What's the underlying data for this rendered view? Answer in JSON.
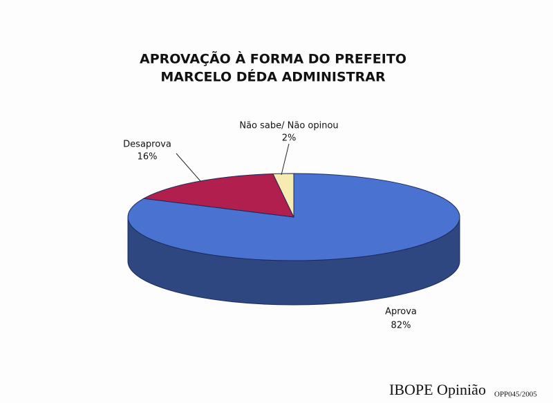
{
  "chart_data": {
    "type": "pie",
    "title": [
      "APROVAÇÃO À FORMA DO PREFEITO",
      "MARCELO DÉDA ADMINISTRAR"
    ],
    "categories": [
      "Aprova",
      "Desaprova",
      "Não sabe/ Não opinou"
    ],
    "values": [
      82,
      16,
      2
    ],
    "value_labels": [
      "82%",
      "16%",
      "2%"
    ],
    "colors": [
      "#4a72d0",
      "#b01f4e",
      "#f6ebb0"
    ],
    "source": "IBOPE Opinião",
    "code": "OPP045/2005"
  }
}
